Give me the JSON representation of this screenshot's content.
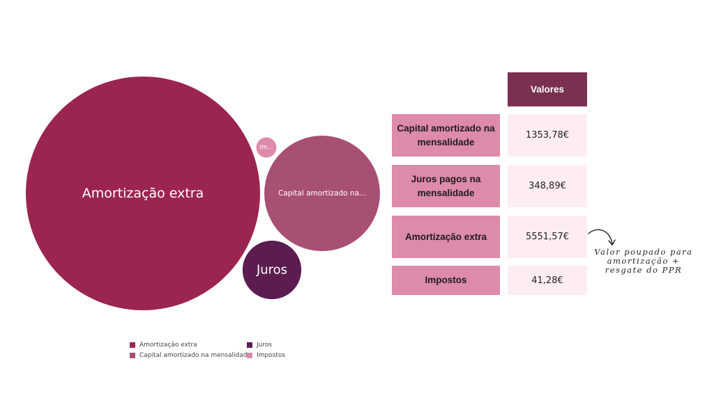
{
  "chart_data": {
    "type": "bubble",
    "series": [
      {
        "name": "Amortização extra",
        "label": "Amortização extra",
        "value": 5551.57,
        "color": "#9b2550"
      },
      {
        "name": "Capital amortizado na mensalidade",
        "label": "Capital amortizado na...",
        "value": 1353.78,
        "color": "#a84f74"
      },
      {
        "name": "Juros",
        "label": "Juros",
        "value": 348.89,
        "color": "#5b1d4f"
      },
      {
        "name": "Impostos",
        "label": "Im...",
        "value": 41.28,
        "color": "#de8aaa"
      }
    ],
    "legend_placement": "bottom-left"
  },
  "legend": {
    "items": [
      {
        "label": "Amortização extra",
        "color": "#9b2550"
      },
      {
        "label": "Juros",
        "color": "#5b1d4f"
      },
      {
        "label": "Capital amortizado na mensalidade",
        "color": "#a84f74"
      },
      {
        "label": "Impostos",
        "color": "#de8aaa"
      }
    ]
  },
  "table": {
    "header": "Valores",
    "rows": [
      {
        "label": "Capital amortizado na mensalidade",
        "value": "1353,78€"
      },
      {
        "label": "Juros pagos na mensalidade",
        "value": "348,89€"
      },
      {
        "label": "Amortização extra",
        "value": "5551,57€"
      },
      {
        "label": "Impostos",
        "value": "41,28€"
      }
    ]
  },
  "annotation": {
    "text": "Valor poupado para amortização + resgate do PPR"
  }
}
